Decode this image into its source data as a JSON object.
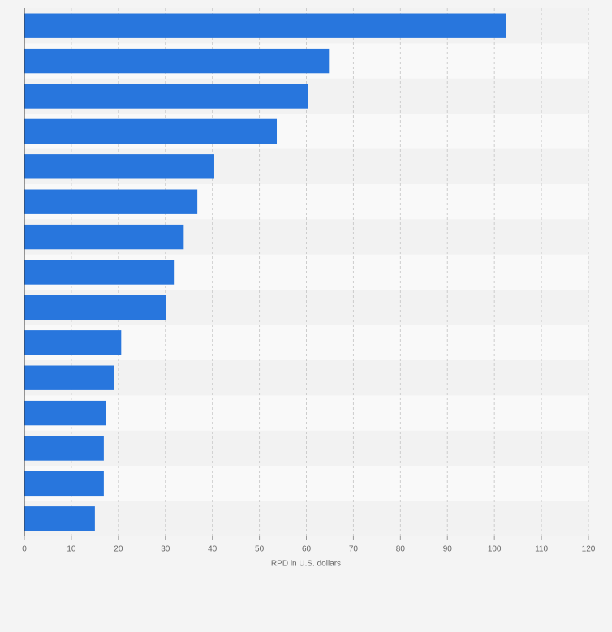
{
  "chart_data": {
    "type": "bar",
    "orientation": "horizontal",
    "x_label": "RPD in U.S. dollars",
    "categories": [
      null,
      null,
      null,
      null,
      null,
      null,
      null,
      null,
      null,
      null,
      null,
      null,
      null,
      null,
      null
    ],
    "values": [
      102.4,
      64.8,
      60.3,
      53.7,
      40.4,
      36.8,
      33.9,
      31.8,
      30.1,
      20.6,
      19.0,
      17.3,
      16.9,
      16.9,
      15.0
    ],
    "color": "#2876dd",
    "xlim": [
      0,
      120
    ],
    "xticks": [
      0,
      10,
      20,
      30,
      40,
      50,
      60,
      70,
      80,
      90,
      100,
      110,
      120
    ],
    "grid": true
  }
}
